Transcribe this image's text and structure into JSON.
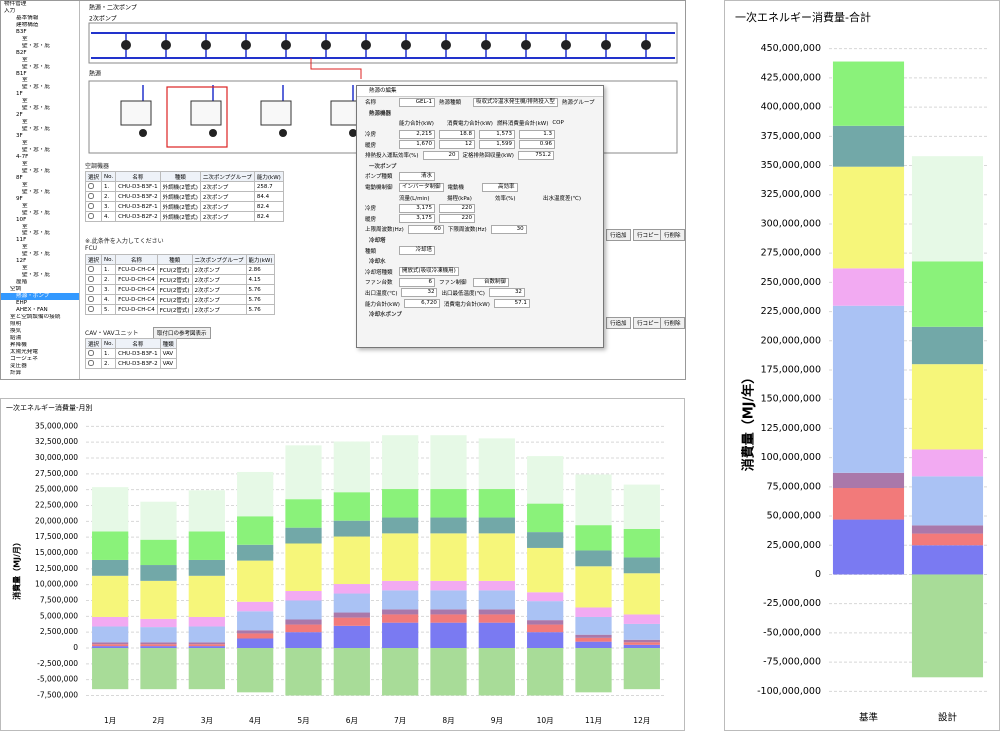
{
  "screen": {
    "tree": [
      "物件管理",
      "入力",
      "基本情報",
      "建物構造",
      "B3F",
      "室",
      "壁・窓・庇",
      "B2F",
      "室",
      "壁・窓・庇",
      "B1F",
      "室",
      "壁・窓・庇",
      "1F",
      "室",
      "壁・窓・庇",
      "2F",
      "室",
      "壁・窓・庇",
      "3F",
      "室",
      "壁・窓・庇",
      "4-7F",
      "室",
      "壁・窓・庇",
      "8F",
      "室",
      "壁・窓・庇",
      "9F",
      "室",
      "壁・窓・庇",
      "10F",
      "室",
      "壁・窓・庇",
      "11F",
      "室",
      "壁・窓・庇",
      "12F",
      "室",
      "壁・窓・庇",
      "屋階",
      "空調",
      "熱源・ポンプ",
      "EHP",
      "AHEX・FAN",
      "室と空調設備の接続",
      "照明",
      "換気",
      "給湯",
      "昇降機",
      "太陽光発電",
      "コージェネ",
      "変圧器",
      "計算"
    ],
    "diagram": {
      "title": "熱源・二次ポンプ",
      "pump_label": "2次ポンプ",
      "source_label": "熱源"
    },
    "ahu": {
      "title": "空調機器",
      "headers": [
        "選択",
        "No.",
        "名称",
        "種類",
        "二次ポンプグループ",
        "能力(kW)"
      ],
      "rows": [
        [
          "1.",
          "CHU-D3-B3F-1",
          "外調機(2管式)",
          "2次ポンプ",
          "258.7"
        ],
        [
          "2.",
          "CHU-D3-B3F-2",
          "外調機(2管式)",
          "2次ポンプ",
          "84.4"
        ],
        [
          "3.",
          "CHU-D3-B2F-1",
          "外調機(2管式)",
          "2次ポンプ",
          "82.4"
        ],
        [
          "4.",
          "CHU-D3-B2F-2",
          "外調機(2管式)",
          "2次ポンプ",
          "82.4"
        ]
      ]
    },
    "note": "※.此条件を入力してください",
    "fcu": {
      "title": "FCU",
      "headers": [
        "選択",
        "No.",
        "名称",
        "種類",
        "二次ポンプグループ",
        "能力(kW)"
      ],
      "rows": [
        [
          "1.",
          "FCU-D-CH-C4",
          "FCU(2管式)",
          "2次ポンプ",
          "2.86"
        ],
        [
          "2.",
          "FCU-D-CH-C4",
          "FCU(2管式)",
          "2次ポンプ",
          "4.15"
        ],
        [
          "3.",
          "FCU-D-CH-C4",
          "FCU(2管式)",
          "2次ポンプ",
          "5.76"
        ],
        [
          "4.",
          "FCU-D-CH-C4",
          "FCU(2管式)",
          "2次ポンプ",
          "5.76"
        ],
        [
          "5.",
          "FCU-D-CH-C4",
          "FCU(2管式)",
          "2次ポンプ",
          "5.76"
        ]
      ]
    },
    "vav": {
      "title": "CAV・VAVユニット",
      "button": "取付口の参考図表示",
      "headers": [
        "選択",
        "No.",
        "名称",
        "種類"
      ],
      "rows": [
        [
          "1.",
          "CHU-D3-B3F-1",
          "VAV"
        ],
        [
          "2.",
          "CHU-D3-B3F-2",
          "VAV"
        ]
      ]
    },
    "buttons": [
      "行追加",
      "行コピー",
      "行削除"
    ],
    "dialog": {
      "title": "熱源の編集",
      "rows": [
        {
          "fields": [
            {
              "label": "名称",
              "value": "GEL-1"
            },
            {
              "label": "熱源種類",
              "value": "吸収式冷温水発生機/排熱投入型"
            },
            {
              "label": "熱源グループ"
            }
          ]
        },
        {
          "title": "熱源機器"
        },
        {
          "headers": [
            "能力合計(kW)",
            "消費電力合計(kW)",
            "燃料消費量合計(kW)",
            "COP"
          ]
        },
        {
          "fields": [
            {
              "label": "冷房",
              "value": "2,215"
            },
            {
              "value": "18.8"
            },
            {
              "value": "1,573"
            },
            {
              "value": "1.3"
            }
          ]
        },
        {
          "fields": [
            {
              "label": "暖房",
              "value": "1,670"
            },
            {
              "value": "12"
            },
            {
              "value": "1,599"
            },
            {
              "value": "0.96"
            }
          ]
        },
        {
          "fields": [
            {
              "label": "排熱投入運転効率(%)",
              "value": "20"
            },
            {
              "label": "定格排熱回収量(kW)",
              "value": "751.2"
            }
          ]
        },
        {
          "title": "一次ポンプ"
        },
        {
          "fields": [
            {
              "label": "ポンプ種類",
              "value": "清水"
            }
          ]
        },
        {
          "fields": [
            {
              "label": "電動機制御",
              "value": "インバータ制御"
            },
            {
              "label": "電動機",
              "value": "高効率"
            }
          ]
        },
        {
          "headers": [
            "流量(L/min)",
            "揚程(kPa)",
            "効率(%)",
            "出水温度差(℃)"
          ]
        },
        {
          "fields": [
            {
              "label": "冷房",
              "value": "3,175"
            },
            {
              "value": "220"
            }
          ]
        },
        {
          "fields": [
            {
              "label": "暖房",
              "value": "3,175"
            },
            {
              "value": "220"
            }
          ]
        },
        {
          "fields": [
            {
              "label": "上限周波数(Hz)",
              "value": "60"
            },
            {
              "label": "下限周波数(Hz)",
              "value": "30"
            }
          ]
        },
        {
          "title": "冷却塔"
        },
        {
          "fields": [
            {
              "label": "種類",
              "value": "冷却塔"
            }
          ]
        },
        {
          "title": "冷却水"
        },
        {
          "fields": [
            {
              "label": "冷却塔種類",
              "value": "開放式(吸収冷凍機用)"
            }
          ]
        },
        {
          "fields": [
            {
              "label": "ファン台数",
              "value": "6"
            },
            {
              "label": "ファン制御",
              "value": "台数制御"
            }
          ]
        },
        {
          "fields": [
            {
              "label": "出口温度(℃)",
              "value": "32"
            },
            {
              "label": "出口最低温度(℃)",
              "value": "32"
            }
          ]
        },
        {
          "fields": [
            {
              "label": "能力合計(kW)",
              "value": "6,720"
            },
            {
              "label": "消費電力合計(kW)",
              "value": "57.1"
            }
          ]
        },
        {
          "title": "冷却水ポンプ"
        }
      ]
    }
  },
  "chart_data": [
    {
      "type": "bar",
      "title": "一次エネルギー消費量-月別",
      "y_label": "消費量（MJ/月）",
      "categories": [
        "1月",
        "2月",
        "3月",
        "4月",
        "5月",
        "6月",
        "7月",
        "8月",
        "9月",
        "10月",
        "11月",
        "12月"
      ],
      "series": [
        {
          "color": "#7a7af2",
          "values": [
            300000,
            300000,
            300000,
            1500000,
            2500000,
            3500000,
            4000000,
            4000000,
            4000000,
            2500000,
            1000000,
            500000
          ]
        },
        {
          "color": "#f27a7a",
          "values": [
            300000,
            300000,
            300000,
            800000,
            1200000,
            1300000,
            1300000,
            1300000,
            1300000,
            1200000,
            600000,
            400000
          ]
        },
        {
          "color": "#aa78aa",
          "values": [
            300000,
            300000,
            300000,
            500000,
            800000,
            800000,
            800000,
            800000,
            800000,
            700000,
            500000,
            400000
          ]
        },
        {
          "color": "#aac2f4",
          "values": [
            2500000,
            2400000,
            2500000,
            3000000,
            3000000,
            3000000,
            3000000,
            3000000,
            3000000,
            3000000,
            2800000,
            2500000
          ]
        },
        {
          "color": "#f2aaf2",
          "values": [
            1500000,
            1300000,
            1500000,
            1500000,
            1500000,
            1500000,
            1500000,
            1500000,
            1500000,
            1400000,
            1500000,
            1500000
          ]
        },
        {
          "color": "#f6f67a",
          "values": [
            6500000,
            6000000,
            6500000,
            6500000,
            7500000,
            7500000,
            7500000,
            7500000,
            7500000,
            7000000,
            6500000,
            6500000
          ]
        },
        {
          "color": "#72a8a8",
          "values": [
            2500000,
            2500000,
            2500000,
            2500000,
            2500000,
            2500000,
            2500000,
            2500000,
            2500000,
            2500000,
            2500000,
            2500000
          ]
        },
        {
          "color": "#8af27a",
          "values": [
            4500000,
            4000000,
            4500000,
            4500000,
            4500000,
            4500000,
            4500000,
            4500000,
            4500000,
            4500000,
            4000000,
            4500000
          ]
        },
        {
          "color": "#e6f9e6",
          "values": [
            7000000,
            6000000,
            6500000,
            7000000,
            8500000,
            8000000,
            8500000,
            8500000,
            8000000,
            7500000,
            8000000,
            7000000
          ]
        },
        {
          "color": "#a8dc98",
          "values": [
            -6500000,
            -6500000,
            -6500000,
            -7000000,
            -7500000,
            -7500000,
            -7500000,
            -7500000,
            -7500000,
            -7500000,
            -7000000,
            -6500000
          ]
        }
      ],
      "ylim": [
        -9000000,
        36000000
      ],
      "yticks": [
        {
          "value": -7500000,
          "label": "-7,500,000"
        },
        {
          "value": -5000000,
          "label": "-5,000,000"
        },
        {
          "value": -2500000,
          "label": "-2,500,000"
        },
        0,
        {
          "value": 2500000,
          "label": "2,500,000"
        },
        {
          "value": 5000000,
          "label": "5,000,000"
        },
        {
          "value": 7500000,
          "label": "7,500,000"
        },
        {
          "value": 10000000,
          "label": "10,000,000"
        },
        {
          "value": 12500000,
          "label": "12,500,000"
        },
        {
          "value": 15000000,
          "label": "15,000,000"
        },
        {
          "value": 17500000,
          "label": "17,500,000"
        },
        {
          "value": 20000000,
          "label": "20,000,000"
        },
        {
          "value": 22500000,
          "label": "22,500,000"
        },
        {
          "value": 25000000,
          "label": "25,000,000"
        },
        {
          "value": 27500000,
          "label": "27,500,000"
        },
        {
          "value": 30000000,
          "label": "30,000,000"
        },
        {
          "value": 32500000,
          "label": "32,500,000"
        },
        {
          "value": 35000000,
          "label": "35,000,000"
        }
      ],
      "grid": true
    },
    {
      "type": "bar",
      "title": "一次エネルギー消費量-合計",
      "y_label": "消費量（MJ/年）",
      "categories": [
        "基準",
        "設計"
      ],
      "series": [
        {
          "color": "#7a7af2",
          "values": [
            47000000,
            25000000
          ]
        },
        {
          "color": "#f27a7a",
          "values": [
            27000000,
            10000000
          ]
        },
        {
          "color": "#aa78aa",
          "values": [
            13000000,
            7000000
          ]
        },
        {
          "color": "#aac2f4",
          "values": [
            143000000,
            42000000
          ]
        },
        {
          "color": "#f2aaf2",
          "values": [
            32000000,
            23000000
          ]
        },
        {
          "color": "#f6f67a",
          "values": [
            87000000,
            73000000
          ]
        },
        {
          "color": "#72a8a8",
          "values": [
            35000000,
            32000000
          ]
        },
        {
          "color": "#8af27a",
          "values": [
            55000000,
            56000000
          ]
        },
        {
          "color": "#e6f9e6",
          "values": [
            0,
            90000000
          ]
        },
        {
          "color": "#a8dc98",
          "values": [
            0,
            -88000000
          ]
        }
      ],
      "ylim": [
        -110000000,
        460000000
      ],
      "yticks": [
        {
          "value": -100000000,
          "label": "-100,000,000"
        },
        {
          "value": -75000000,
          "label": "-75,000,000"
        },
        {
          "value": -50000000,
          "label": "-50,000,000"
        },
        {
          "value": -25000000,
          "label": "-25,000,000"
        },
        0,
        {
          "value": 25000000,
          "label": "25,000,000"
        },
        {
          "value": 50000000,
          "label": "50,000,000"
        },
        {
          "value": 75000000,
          "label": "75,000,000"
        },
        {
          "value": 100000000,
          "label": "100,000,000"
        },
        {
          "value": 125000000,
          "label": "125,000,000"
        },
        {
          "value": 150000000,
          "label": "150,000,000"
        },
        {
          "value": 175000000,
          "label": "175,000,000"
        },
        {
          "value": 200000000,
          "label": "200,000,000"
        },
        {
          "value": 225000000,
          "label": "225,000,000"
        },
        {
          "value": 250000000,
          "label": "250,000,000"
        },
        {
          "value": 275000000,
          "label": "275,000,000"
        },
        {
          "value": 300000000,
          "label": "300,000,000"
        },
        {
          "value": 325000000,
          "label": "325,000,000"
        },
        {
          "value": 350000000,
          "label": "350,000,000"
        },
        {
          "value": 375000000,
          "label": "375,000,000"
        },
        {
          "value": 400000000,
          "label": "400,000,000"
        },
        {
          "value": 425000000,
          "label": "425,000,000"
        },
        {
          "value": 450000000,
          "label": "450,000,000"
        }
      ],
      "grid": true
    }
  ]
}
